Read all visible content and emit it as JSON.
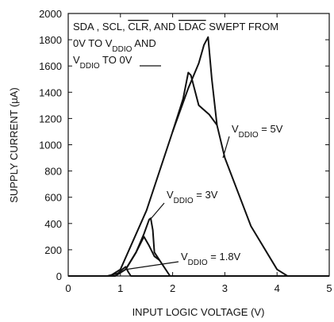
{
  "chart_data": {
    "type": "line",
    "x_label": "INPUT LOGIC VOLTAGE (V)",
    "y_label": "SUPPLY CURRENT  (µA)",
    "xlim": [
      0,
      5
    ],
    "xticks": [
      0,
      1,
      2,
      3,
      4,
      5
    ],
    "ylim": [
      0,
      2000
    ],
    "yticks": [
      0,
      200,
      400,
      600,
      800,
      1000,
      1200,
      1400,
      1600,
      1800,
      2000
    ],
    "note": [
      [
        {
          "text": "SDA , SCL, "
        },
        {
          "text": "CLR",
          "style": "over"
        },
        {
          "text": ", AND "
        },
        {
          "text": "LDAC",
          "style": "over"
        },
        {
          "text": " SWEPT FROM"
        }
      ],
      [
        {
          "text": "0V TO V"
        },
        {
          "text": "DDIO",
          "style": "sub"
        },
        {
          "text": " AND"
        }
      ],
      [
        {
          "text": "V"
        },
        {
          "text": "DDIO",
          "style": "sub"
        },
        {
          "text": " TO 0V"
        }
      ]
    ],
    "series": [
      {
        "color": "#111111",
        "label": [
          {
            "text": "V"
          },
          {
            "text": "DDIO",
            "style": "sub"
          },
          {
            "text": " = 5V"
          }
        ],
        "x": [
          0,
          0.8,
          1.0,
          1.5,
          2.0,
          2.3,
          2.5,
          2.6,
          2.68,
          2.75,
          2.85,
          3.0,
          3.5,
          4.0,
          4.2,
          5
        ],
        "values": [
          0,
          0,
          50,
          500,
          1100,
          1430,
          1620,
          1760,
          1820,
          1500,
          1150,
          900,
          380,
          50,
          0,
          0
        ]
      },
      {
        "color": "#111111",
        "x": [
          2.0,
          2.2,
          2.3,
          2.35,
          2.5,
          2.7,
          2.85
        ],
        "values": [
          1100,
          1350,
          1550,
          1530,
          1300,
          1230,
          1150
        ]
      },
      {
        "color": "#111111",
        "label": [
          {
            "text": "V"
          },
          {
            "text": "DDIO",
            "style": "sub"
          },
          {
            "text": " = 3V"
          }
        ],
        "x": [
          0,
          0.9,
          1.1,
          1.3,
          1.45,
          1.55,
          1.58,
          1.62,
          1.65,
          1.75,
          1.95,
          5
        ],
        "values": [
          0,
          0,
          50,
          180,
          320,
          430,
          440,
          350,
          180,
          120,
          0,
          0
        ]
      },
      {
        "color": "#111111",
        "x": [
          1.1,
          1.3,
          1.45,
          1.55,
          1.65,
          1.75
        ],
        "values": [
          50,
          180,
          300,
          230,
          150,
          120
        ]
      },
      {
        "color": "#111111",
        "label": [
          {
            "text": "V"
          },
          {
            "text": "DDIO",
            "style": "sub"
          },
          {
            "text": " = 1.8V"
          }
        ],
        "x": [
          0,
          0.75,
          0.95,
          1.05,
          1.1,
          1.15,
          1.2,
          5
        ],
        "values": [
          0,
          0,
          20,
          55,
          70,
          30,
          0,
          0
        ]
      }
    ]
  }
}
